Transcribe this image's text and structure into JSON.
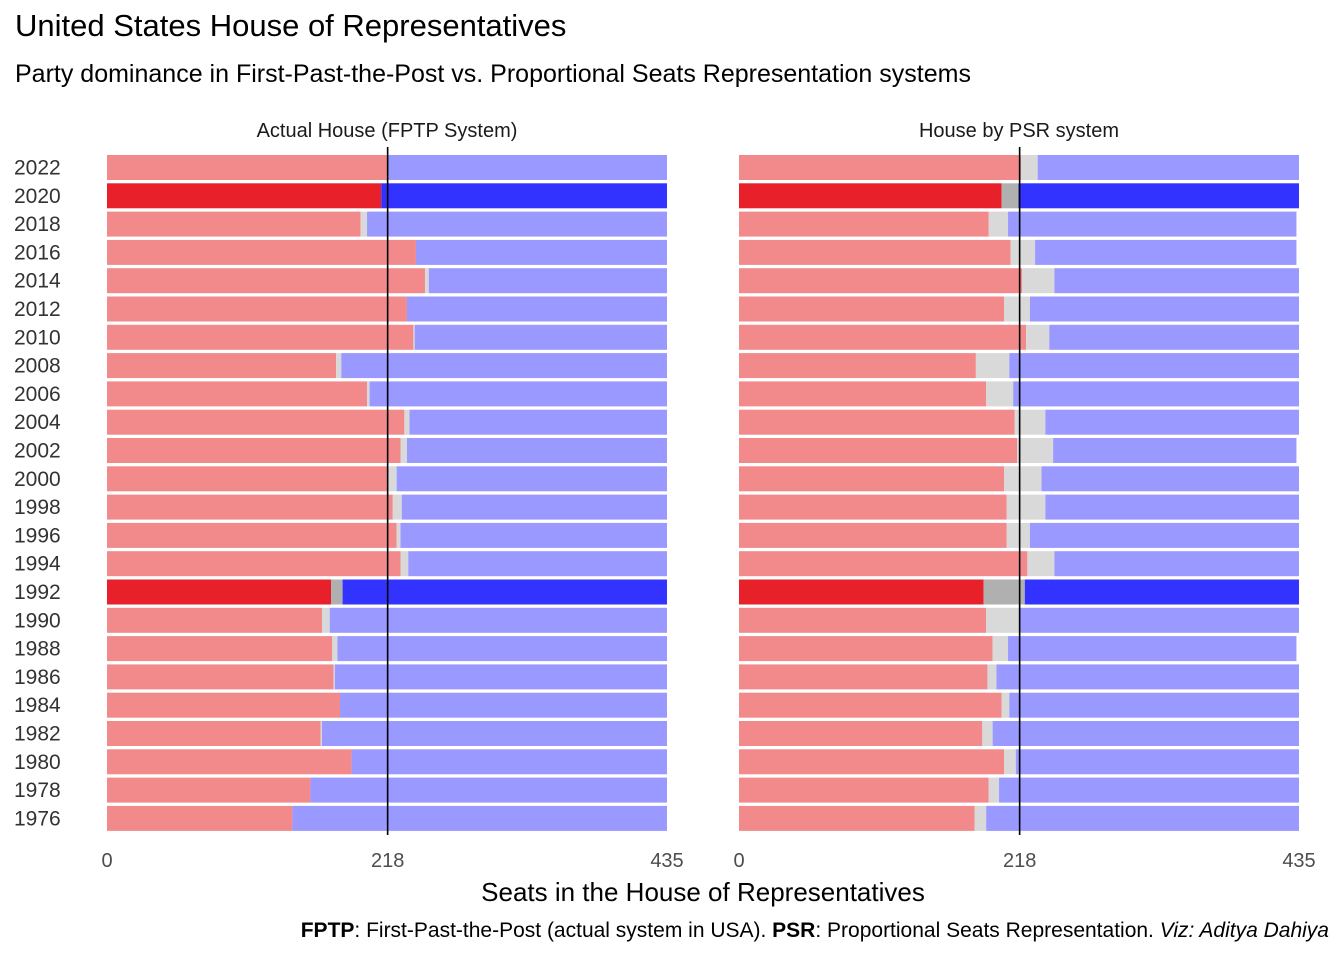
{
  "title": "United States House of Representatives",
  "subtitle": "Party dominance in First-Past-the-Post vs. Proportional Seats Representation systems",
  "caption": {
    "fptp_abbr": "FPTP",
    "fptp_text": ": First-Past-the-Post (actual system in USA). ",
    "psr_abbr": "PSR",
    "psr_text": ": Proportional Seats Representation. ",
    "credit": "Viz: Aditya Dahiya"
  },
  "colors": {
    "rep": "#F28A8C",
    "other": "#D9D9D9",
    "dem": "#9999FF",
    "rep_highlight": "#E8202A",
    "other_highlight": "#B0B0B0",
    "dem_highlight": "#3333FF",
    "majority_line": "#000000"
  },
  "chart_data": {
    "type": "bar",
    "orientation": "horizontal",
    "stacked": true,
    "xlabel": "Seats in the House of Representatives",
    "xlim": [
      0,
      435
    ],
    "xticks": [
      0,
      218,
      435
    ],
    "majority_line": 218,
    "highlight_years": [
      "2020",
      "1992"
    ],
    "categories": [
      "2022",
      "2020",
      "2018",
      "2016",
      "2014",
      "2012",
      "2010",
      "2008",
      "2006",
      "2004",
      "2002",
      "2000",
      "1998",
      "1996",
      "1994",
      "1992",
      "1990",
      "1988",
      "1986",
      "1984",
      "1982",
      "1980",
      "1978",
      "1976"
    ],
    "panels": [
      {
        "title": "Actual House (FPTP System)",
        "series": [
          {
            "key": "rep",
            "values": [
              218,
              213,
              197,
              240,
              247,
              233,
              238,
              178,
              202,
              231,
              228,
              218,
              222,
              225,
              228,
              174,
              167,
              175,
              176,
              181,
              166,
              190,
              158,
              144
            ]
          },
          {
            "key": "other",
            "values": [
              0,
              0,
              5,
              0,
              3,
              0,
              1,
              4,
              2,
              4,
              5,
              7,
              7,
              3,
              6,
              9,
              6,
              4,
              1,
              0,
              1,
              0,
              0,
              0
            ]
          },
          {
            "key": "dem",
            "values": [
              217,
              222,
              233,
              195,
              185,
              202,
              196,
              253,
              231,
              200,
              202,
              210,
              206,
              207,
              201,
              252,
              262,
              256,
              258,
              254,
              268,
              245,
              277,
              291
            ]
          }
        ]
      },
      {
        "title": "House by PSR system",
        "series": [
          {
            "key": "rep",
            "values": [
              219,
              204,
              194,
              211,
              220,
              206,
              223,
              184,
              192,
              214,
              216,
              206,
              208,
              208,
              224,
              190,
              192,
              197,
              193,
              204,
              189,
              206,
              194,
              183
            ]
          },
          {
            "key": "other",
            "values": [
              13,
              13,
              15,
              19,
              25,
              20,
              18,
              26,
              21,
              24,
              28,
              29,
              30,
              18,
              21,
              32,
              26,
              12,
              7,
              6,
              8,
              9,
              8,
              9
            ]
          },
          {
            "key": "dem",
            "values": [
              203,
              218,
              224,
              203,
              190,
              209,
              194,
              225,
              222,
              197,
              189,
              200,
              197,
              209,
              190,
              213,
              217,
              224,
              235,
              225,
              238,
              220,
              233,
              243
            ]
          }
        ]
      }
    ]
  }
}
